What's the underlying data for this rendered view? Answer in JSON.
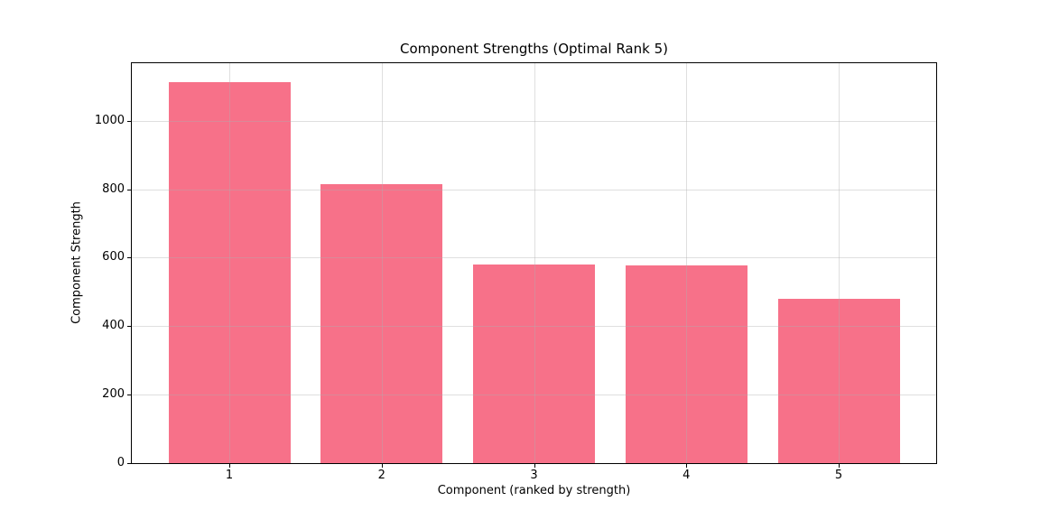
{
  "chart_data": {
    "type": "bar",
    "title": "Component Strengths (Optimal Rank 5)",
    "xlabel": "Component (ranked by strength)",
    "ylabel": "Component Strength",
    "categories": [
      "1",
      "2",
      "3",
      "4",
      "5"
    ],
    "values": [
      1113,
      816,
      581,
      578,
      479
    ],
    "yticks": [
      0,
      200,
      400,
      600,
      800,
      1000
    ],
    "ylim": [
      0,
      1168
    ],
    "xlim": [
      0.36,
      5.64
    ],
    "bar_width": 0.8,
    "bar_color": "#f77189",
    "grid": true,
    "grid_color": "rgba(176,176,176,0.4)",
    "spine_color": "#000000",
    "background_color": "#ffffff",
    "legend": "none"
  }
}
